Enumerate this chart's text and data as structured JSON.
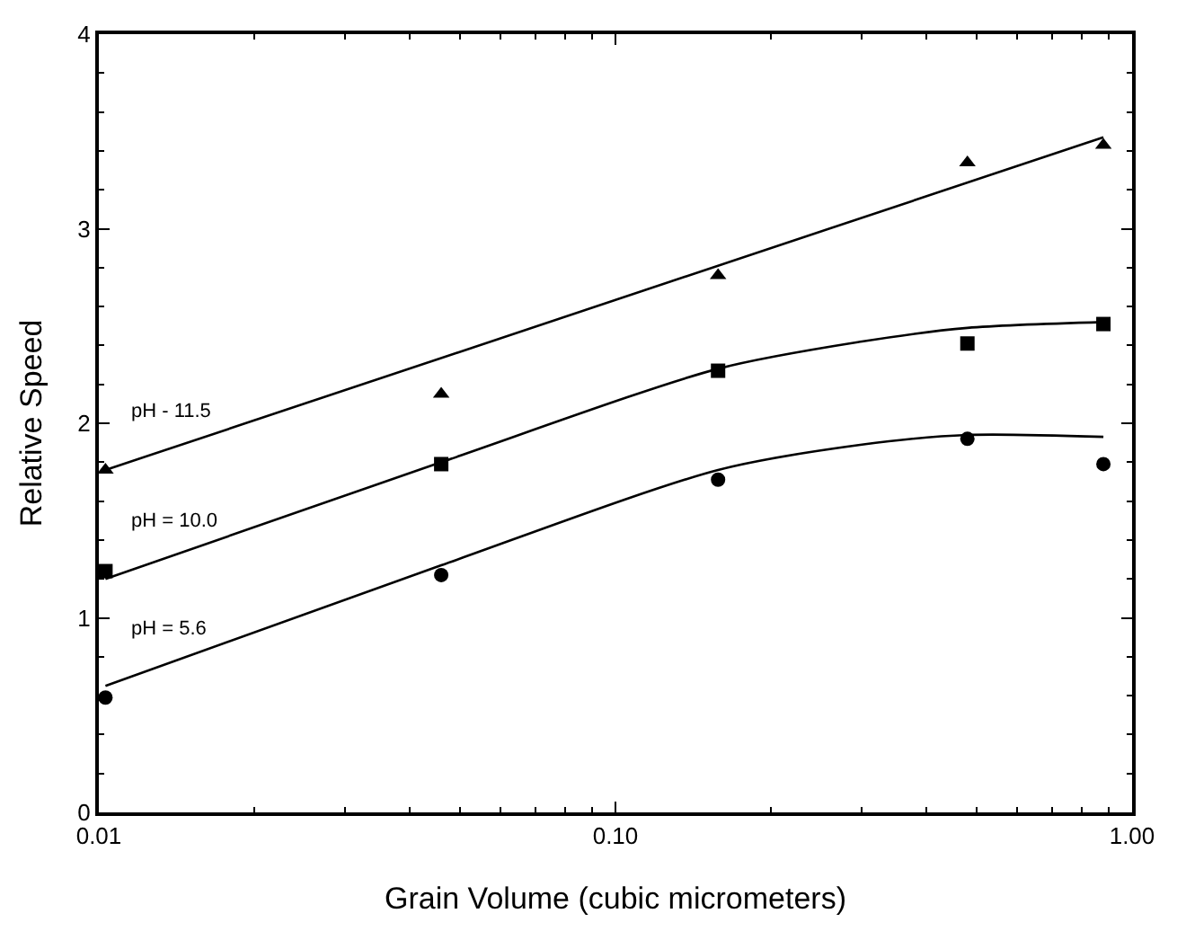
{
  "chart_data": {
    "type": "scatter",
    "xlabel": "Grain Volume (cubic micrometers)",
    "ylabel": "Relative Speed",
    "log": "x",
    "xlim": [
      0.01,
      1.0
    ],
    "xticks": [
      {
        "value": 0.01,
        "label": "0.01"
      },
      {
        "value": 0.1,
        "label": "0.10"
      },
      {
        "value": 1.0,
        "label": "1.00"
      }
    ],
    "ylim": [
      0,
      4
    ],
    "yticks": [
      0,
      1,
      2,
      3,
      4
    ],
    "legend": false,
    "series": [
      {
        "marker": "triangle",
        "color": "#000000",
        "x": [
          0.0103,
          0.046,
          0.158,
          0.48,
          0.88
        ],
        "values": [
          1.76,
          2.15,
          2.76,
          3.34,
          3.43
        ]
      },
      {
        "marker": "square",
        "color": "#000000",
        "x": [
          0.0103,
          0.046,
          0.158,
          0.48,
          0.88
        ],
        "values": [
          1.24,
          1.79,
          2.27,
          2.41,
          2.51
        ]
      },
      {
        "marker": "circle",
        "color": "#000000",
        "x": [
          0.0103,
          0.046,
          0.158,
          0.48,
          0.88
        ],
        "values": [
          0.59,
          1.22,
          1.71,
          1.92,
          1.79
        ]
      },
      {
        "type": "line",
        "name": "pH - 11.5",
        "marker": "none",
        "color": "#000000",
        "x": [
          0.0103,
          0.88
        ],
        "values": [
          1.76,
          3.47
        ]
      },
      {
        "type": "line",
        "name": "pH = 10.0",
        "marker": "none",
        "color": "#000000",
        "x": [
          0.0103,
          0.046,
          0.158,
          0.3,
          0.48,
          0.88
        ],
        "values": [
          1.2,
          1.8,
          2.28,
          2.42,
          2.49,
          2.52
        ]
      },
      {
        "type": "line",
        "name": "pH = 5.6",
        "marker": "none",
        "color": "#000000",
        "x": [
          0.0103,
          0.046,
          0.158,
          0.3,
          0.48,
          0.88
        ],
        "values": [
          0.65,
          1.27,
          1.76,
          1.89,
          1.94,
          1.93
        ]
      }
    ]
  }
}
